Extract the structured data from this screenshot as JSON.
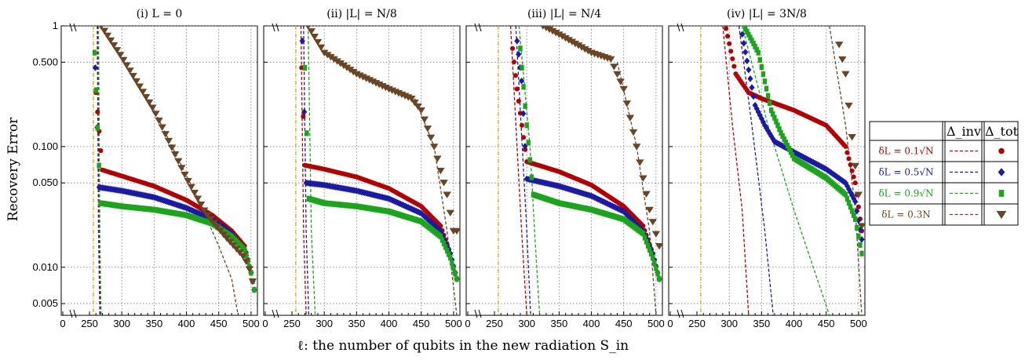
{
  "figure": {
    "ylabel": "Recovery Error",
    "xlabel": "ℓ: the number of qubits in the new radiation S_in"
  },
  "legend": {
    "headers": [
      "",
      "Δ_inv",
      "Δ_tot"
    ],
    "rows": [
      {
        "label": "δL = 0.1√N",
        "color": "#b50000",
        "marker": "circle"
      },
      {
        "label": "δL = 0.5√N",
        "color": "#1a1aa6",
        "marker": "diamond"
      },
      {
        "label": "δL = 0.9√N",
        "color": "#1aa51a",
        "marker": "square"
      },
      {
        "label": "δL = 0.3N",
        "color": "#6b4423",
        "marker": "triangle-down"
      }
    ]
  },
  "chart_data": [
    {
      "type": "scatter",
      "title": "(i) L = 0",
      "xticks": [
        "0",
        "250",
        "300",
        "350",
        "400",
        "450",
        "500"
      ],
      "yticks": [
        "1",
        "0.500",
        "0.100",
        "0.050",
        "0.010",
        "0.005"
      ],
      "xlim": [
        250,
        505
      ],
      "ylim": [
        0.004,
        1
      ],
      "yscale": "log",
      "grid": true,
      "vline": 256,
      "series": [
        {
          "name": "δL = 0.1√N",
          "color": "#b50000",
          "marker": "circle",
          "x": [
            260,
            270,
            300,
            350,
            400,
            440,
            470,
            490,
            500,
            505
          ],
          "y": [
            0.28,
            0.064,
            0.057,
            0.047,
            0.036,
            0.027,
            0.02,
            0.015,
            0.009,
            0.0065
          ]
        },
        {
          "name": "δL = 0.5√N",
          "color": "#1a1aa6",
          "marker": "diamond",
          "x": [
            259,
            265,
            300,
            350,
            400,
            440,
            470,
            490,
            500,
            505
          ],
          "y": [
            0.45,
            0.046,
            0.043,
            0.038,
            0.031,
            0.025,
            0.019,
            0.014,
            0.009,
            0.0065
          ]
        },
        {
          "name": "δL = 0.9√N",
          "color": "#1aa51a",
          "marker": "square",
          "x": [
            258,
            267,
            300,
            350,
            400,
            440,
            470,
            490,
            500,
            505
          ],
          "y": [
            0.6,
            0.034,
            0.032,
            0.03,
            0.027,
            0.023,
            0.018,
            0.014,
            0.009,
            0.0065
          ]
        },
        {
          "name": "δL = 0.3N",
          "color": "#6b4423",
          "marker": "triangle-down",
          "x": [
            268,
            300,
            350,
            400,
            430,
            460,
            490,
            500,
            505
          ],
          "y": [
            1,
            0.55,
            0.2,
            0.055,
            0.028,
            0.018,
            0.012,
            0.009,
            0.0065
          ]
        }
      ],
      "inv_curves": [
        {
          "color": "#b50000",
          "x": [
            262,
            264,
            266
          ],
          "y": [
            1,
            0.02,
            0.004
          ]
        },
        {
          "color": "#1a1aa6",
          "x": [
            263,
            265,
            267
          ],
          "y": [
            1,
            0.02,
            0.004
          ]
        },
        {
          "color": "#1aa51a",
          "x": [
            264,
            266,
            268
          ],
          "y": [
            1,
            0.02,
            0.004
          ]
        },
        {
          "color": "#6b4423",
          "x": [
            268,
            350,
            420,
            450,
            470,
            480
          ],
          "y": [
            1,
            0.2,
            0.035,
            0.015,
            0.008,
            0.004
          ]
        }
      ]
    },
    {
      "type": "scatter",
      "title": "(ii) |L| = N/8",
      "xticks": [
        "0",
        "250",
        "300",
        "350",
        "400",
        "450",
        "500"
      ],
      "yticks": [],
      "xlim": [
        250,
        505
      ],
      "ylim": [
        0.004,
        1
      ],
      "yscale": "log",
      "grid": true,
      "vline": 256,
      "series": [
        {
          "name": "δL = 0.1√N",
          "color": "#b50000",
          "marker": "circle",
          "x": [
            265,
            270,
            300,
            350,
            400,
            450,
            480,
            495,
            505
          ],
          "y": [
            0.45,
            0.07,
            0.065,
            0.056,
            0.045,
            0.032,
            0.022,
            0.013,
            0.008
          ]
        },
        {
          "name": "δL = 0.5√N",
          "color": "#1a1aa6",
          "marker": "diamond",
          "x": [
            266,
            272,
            300,
            350,
            400,
            450,
            480,
            495,
            505
          ],
          "y": [
            0.75,
            0.05,
            0.048,
            0.043,
            0.037,
            0.028,
            0.02,
            0.013,
            0.008
          ]
        },
        {
          "name": "δL = 0.9√N",
          "color": "#1aa51a",
          "marker": "square",
          "x": [
            270,
            276,
            300,
            350,
            400,
            450,
            480,
            495,
            505
          ],
          "y": [
            0.45,
            0.037,
            0.034,
            0.032,
            0.029,
            0.024,
            0.018,
            0.012,
            0.008
          ]
        },
        {
          "name": "δL = 0.3N",
          "color": "#6b4423",
          "marker": "triangle-down",
          "x": [
            275,
            300,
            350,
            400,
            435,
            450,
            470,
            490,
            500,
            505
          ],
          "y": [
            1,
            0.6,
            0.4,
            0.3,
            0.25,
            0.2,
            0.1,
            0.04,
            0.02,
            0.02
          ]
        }
      ],
      "inv_curves": [
        {
          "color": "#b50000",
          "x": [
            264,
            268,
            272
          ],
          "y": [
            1,
            0.02,
            0.004
          ]
        },
        {
          "color": "#1a1aa6",
          "x": [
            268,
            272,
            276
          ],
          "y": [
            1,
            0.02,
            0.004
          ]
        },
        {
          "color": "#1aa51a",
          "x": [
            275,
            280,
            286
          ],
          "y": [
            1,
            0.02,
            0.004
          ]
        },
        {
          "color": "#6b4423",
          "x": [
            440,
            470,
            490,
            505
          ],
          "y": [
            0.25,
            0.1,
            0.02,
            0.004
          ]
        }
      ]
    },
    {
      "type": "scatter",
      "title": "(iii) |L| = N/4",
      "xticks": [
        "0",
        "250",
        "300",
        "350",
        "400",
        "450",
        "500"
      ],
      "yticks": [],
      "xlim": [
        250,
        505
      ],
      "ylim": [
        0.004,
        1
      ],
      "yscale": "log",
      "grid": true,
      "vline": 256,
      "series": [
        {
          "name": "δL = 0.1√N",
          "color": "#b50000",
          "marker": "circle",
          "x": [
            278,
            285,
            300,
            350,
            400,
            450,
            480,
            495,
            505
          ],
          "y": [
            0.65,
            0.3,
            0.075,
            0.062,
            0.048,
            0.032,
            0.022,
            0.013,
            0.008
          ]
        },
        {
          "name": "δL = 0.5√N",
          "color": "#1a1aa6",
          "marker": "diamond",
          "x": [
            285,
            292,
            300,
            350,
            400,
            450,
            480,
            495,
            505
          ],
          "y": [
            0.75,
            0.35,
            0.054,
            0.047,
            0.039,
            0.029,
            0.02,
            0.013,
            0.008
          ]
        },
        {
          "name": "δL = 0.9√N",
          "color": "#1aa51a",
          "marker": "square",
          "x": [
            290,
            300,
            310,
            350,
            400,
            450,
            480,
            495,
            505
          ],
          "y": [
            0.65,
            0.15,
            0.04,
            0.034,
            0.03,
            0.025,
            0.019,
            0.012,
            0.008
          ]
        },
        {
          "name": "δL = 0.3N",
          "color": "#6b4423",
          "marker": "triangle-down",
          "x": [
            325,
            350,
            400,
            430,
            450,
            470,
            490,
            505
          ],
          "y": [
            1,
            0.85,
            0.6,
            0.53,
            0.3,
            0.1,
            0.03,
            0.015
          ]
        }
      ],
      "inv_curves": [
        {
          "color": "#b50000",
          "x": [
            275,
            285,
            292,
            300
          ],
          "y": [
            1,
            0.1,
            0.02,
            0.004
          ]
        },
        {
          "color": "#1a1aa6",
          "x": [
            283,
            293,
            300,
            306
          ],
          "y": [
            1,
            0.1,
            0.02,
            0.004
          ]
        },
        {
          "color": "#1aa51a",
          "x": [
            288,
            305,
            312,
            320
          ],
          "y": [
            1,
            0.1,
            0.02,
            0.004
          ]
        },
        {
          "color": "#6b4423",
          "x": [
            440,
            470,
            490,
            500
          ],
          "y": [
            0.5,
            0.1,
            0.02,
            0.004
          ]
        }
      ]
    },
    {
      "type": "scatter",
      "title": "(iv) |L| = 3N/8",
      "xticks": [
        "0",
        "250",
        "300",
        "350",
        "400",
        "450",
        "500"
      ],
      "yticks": [],
      "xlim": [
        250,
        505
      ],
      "ylim": [
        0.004,
        1
      ],
      "yscale": "log",
      "grid": true,
      "vline": 256,
      "series": [
        {
          "name": "δL = 0.1√N",
          "color": "#b50000",
          "marker": "circle",
          "x": [
            295,
            310,
            330,
            350,
            400,
            450,
            480,
            495,
            505
          ],
          "y": [
            0.95,
            0.4,
            0.28,
            0.25,
            0.2,
            0.15,
            0.1,
            0.05,
            0.02
          ]
        },
        {
          "name": "δL = 0.5√N",
          "color": "#1a1aa6",
          "marker": "diamond",
          "x": [
            320,
            340,
            355,
            370,
            400,
            450,
            480,
            495,
            505
          ],
          "y": [
            0.85,
            0.22,
            0.15,
            0.11,
            0.09,
            0.065,
            0.05,
            0.035,
            0.017
          ]
        },
        {
          "name": "δL = 0.9√N",
          "color": "#1aa51a",
          "marker": "square",
          "x": [
            325,
            345,
            365,
            380,
            400,
            450,
            480,
            495,
            505
          ],
          "y": [
            0.95,
            0.6,
            0.2,
            0.13,
            0.08,
            0.055,
            0.04,
            0.025,
            0.013
          ]
        },
        {
          "name": "δL = 0.3N",
          "color": "#6b4423",
          "marker": "triangle-down",
          "x": [
            470,
            480,
            490,
            500,
            505
          ],
          "y": [
            0.7,
            0.4,
            0.12,
            0.04,
            0.022
          ]
        }
      ],
      "inv_curves": [
        {
          "color": "#b50000",
          "x": [
            290,
            305,
            320,
            330
          ],
          "y": [
            1,
            0.15,
            0.03,
            0.004
          ]
        },
        {
          "color": "#1a1aa6",
          "x": [
            315,
            335,
            355,
            368
          ],
          "y": [
            1,
            0.15,
            0.02,
            0.004
          ]
        },
        {
          "color": "#1aa51a",
          "x": [
            320,
            360,
            400,
            455
          ],
          "y": [
            1,
            0.15,
            0.03,
            0.004
          ]
        },
        {
          "color": "#6b4423",
          "x": [
            455,
            480,
            495,
            505
          ],
          "y": [
            1,
            0.15,
            0.03,
            0.004
          ]
        }
      ]
    }
  ]
}
